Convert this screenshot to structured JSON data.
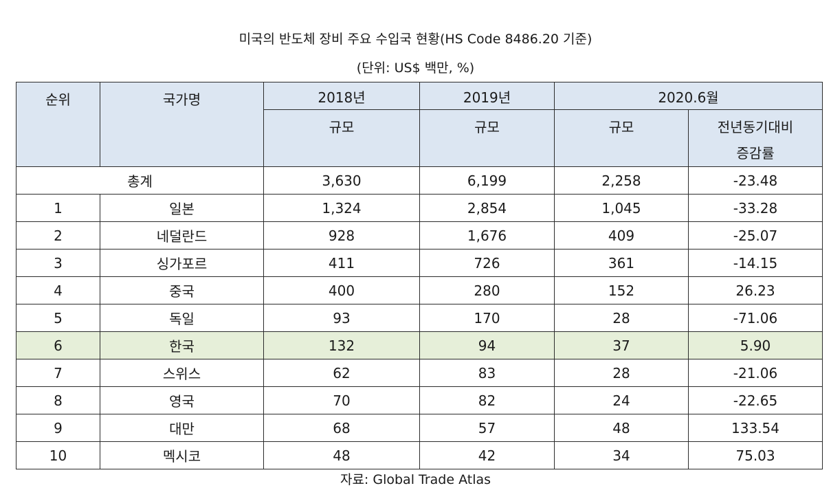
{
  "title": "미국의 반도체 장비 주요 수입국 현황(HS Code 8486.20 기준)",
  "unit": "(단위: US$ 백만, %)",
  "headers": {
    "rank": "순위",
    "country": "국가명",
    "y2018": "2018년",
    "y2019": "2019년",
    "y2020": "2020.6월",
    "scale": "규모",
    "yoy_line1": "전년동기대비",
    "yoy_line2": "증감률"
  },
  "total": {
    "label": "총계",
    "v2018": "3,630",
    "v2019": "6,199",
    "v2020": "2,258",
    "yoy": "-23.48"
  },
  "rows": [
    {
      "rank": "1",
      "country": "일본",
      "v2018": "1,324",
      "v2019": "2,854",
      "v2020": "1,045",
      "yoy": "-33.28"
    },
    {
      "rank": "2",
      "country": "네덜란드",
      "v2018": "928",
      "v2019": "1,676",
      "v2020": "409",
      "yoy": "-25.07"
    },
    {
      "rank": "3",
      "country": "싱가포르",
      "v2018": "411",
      "v2019": "726",
      "v2020": "361",
      "yoy": "-14.15"
    },
    {
      "rank": "4",
      "country": "중국",
      "v2018": "400",
      "v2019": "280",
      "v2020": "152",
      "yoy": "26.23"
    },
    {
      "rank": "5",
      "country": "독일",
      "v2018": "93",
      "v2019": "170",
      "v2020": "28",
      "yoy": "-71.06"
    },
    {
      "rank": "6",
      "country": "한국",
      "v2018": "132",
      "v2019": "94",
      "v2020": "37",
      "yoy": "5.90"
    },
    {
      "rank": "7",
      "country": "스위스",
      "v2018": "62",
      "v2019": "83",
      "v2020": "28",
      "yoy": "-21.06"
    },
    {
      "rank": "8",
      "country": "영국",
      "v2018": "70",
      "v2019": "82",
      "v2020": "24",
      "yoy": "-22.65"
    },
    {
      "rank": "9",
      "country": "대만",
      "v2018": "68",
      "v2019": "57",
      "v2020": "48",
      "yoy": "133.54"
    },
    {
      "rank": "10",
      "country": "멕시코",
      "v2018": "48",
      "v2019": "42",
      "v2020": "34",
      "yoy": "75.03"
    }
  ],
  "source": "자료: Global Trade Atlas"
}
